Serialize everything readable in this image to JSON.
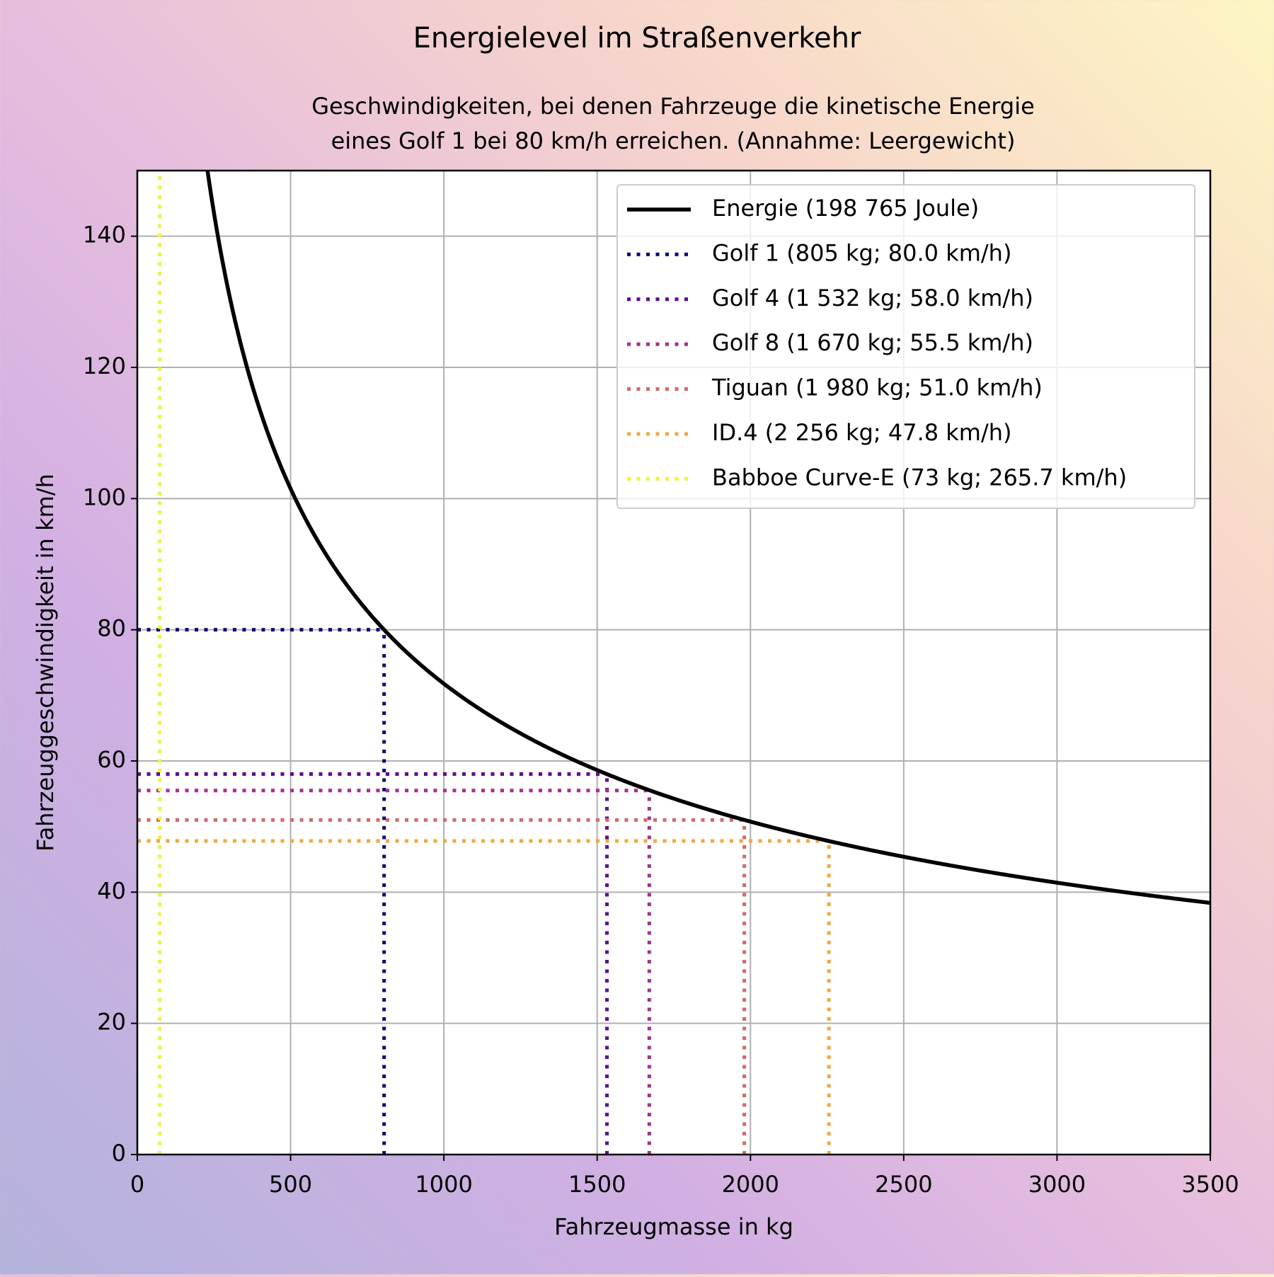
{
  "chart_data": {
    "type": "line",
    "title": "Energielevel im Straßenverkehr",
    "subtitle_lines": [
      "Geschwindigkeiten, bei denen Fahrzeuge die kinetische Energie",
      "eines Golf 1 bei 80 km/h erreichen. (Annahme: Leergewicht)"
    ],
    "xlabel": "Fahrzeugmasse in kg",
    "ylabel": "Fahrzeuggeschwindigkeit in km/h",
    "xlim": [
      0,
      3500
    ],
    "ylim": [
      0,
      150
    ],
    "xticks": [
      0,
      500,
      1000,
      1500,
      2000,
      2500,
      3000,
      3500
    ],
    "yticks": [
      0,
      20,
      40,
      60,
      80,
      100,
      120,
      140
    ],
    "grid": true,
    "legend_position": "top-right",
    "curve": {
      "name": "Energie (198 765 Joule)",
      "energy_joule": 198765,
      "color": "#000000"
    },
    "markers": [
      {
        "name": "Golf 1 (805 kg; 80.0 km/h)",
        "mass": 805,
        "speed": 80.0,
        "color": "#0d0887"
      },
      {
        "name": "Golf 4 (1 532 kg; 58.0 km/h)",
        "mass": 1532,
        "speed": 58.0,
        "color": "#6a00a8"
      },
      {
        "name": "Golf 8 (1 670 kg; 55.5 km/h)",
        "mass": 1670,
        "speed": 55.5,
        "color": "#b12a90"
      },
      {
        "name": "Tiguan (1 980 kg; 51.0 km/h)",
        "mass": 1980,
        "speed": 51.0,
        "color": "#e16462"
      },
      {
        "name": "ID.4 (2 256 kg; 47.8 km/h)",
        "mass": 2256,
        "speed": 47.8,
        "color": "#fca636"
      },
      {
        "name": "Babboe Curve-E (73 kg; 265.7 km/h)",
        "mass": 73,
        "speed": 265.7,
        "color": "#f0f921"
      }
    ]
  }
}
